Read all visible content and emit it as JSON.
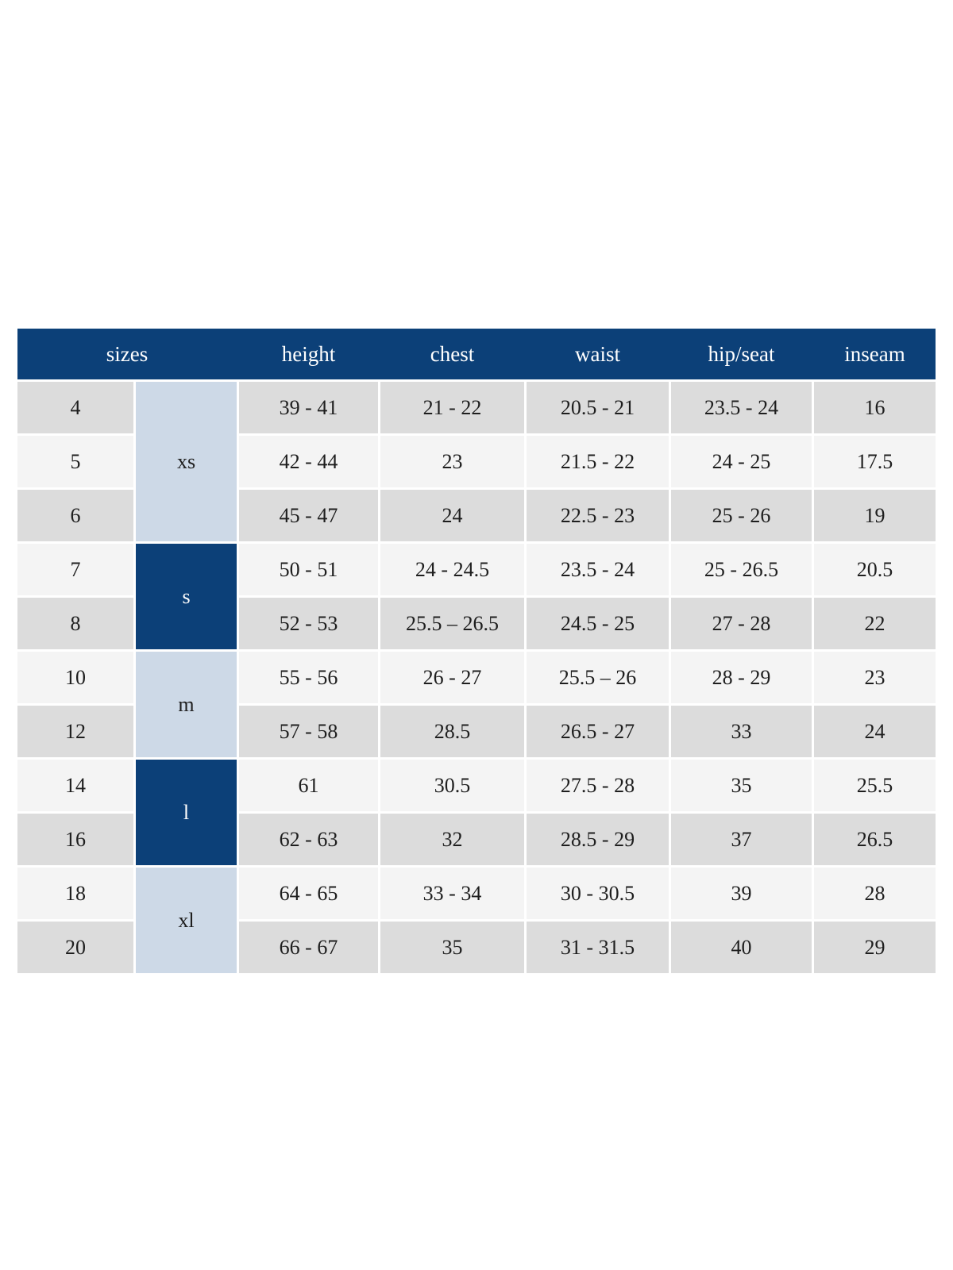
{
  "table": {
    "columns": [
      "sizes",
      "height",
      "chest",
      "waist",
      "hip/seat",
      "inseam"
    ],
    "groups": [
      {
        "label": "xs",
        "rows": 3
      },
      {
        "label": "s",
        "rows": 2
      },
      {
        "label": "m",
        "rows": 2
      },
      {
        "label": "l",
        "rows": 2
      },
      {
        "label": "xl",
        "rows": 2
      }
    ],
    "rows": [
      {
        "size": "4",
        "height": "39 - 41",
        "chest": "21 - 22",
        "waist": "20.5 - 21",
        "hip_seat": "23.5 - 24",
        "inseam": "16"
      },
      {
        "size": "5",
        "height": "42 - 44",
        "chest": "23",
        "waist": "21.5 - 22",
        "hip_seat": "24 - 25",
        "inseam": "17.5"
      },
      {
        "size": "6",
        "height": "45 - 47",
        "chest": "24",
        "waist": "22.5 - 23",
        "hip_seat": "25 - 26",
        "inseam": "19"
      },
      {
        "size": "7",
        "height": "50 - 51",
        "chest": "24 - 24.5",
        "waist": "23.5 - 24",
        "hip_seat": "25 - 26.5",
        "inseam": "20.5"
      },
      {
        "size": "8",
        "height": "52 - 53",
        "chest": "25.5 – 26.5",
        "waist": "24.5 - 25",
        "hip_seat": "27 - 28",
        "inseam": "22"
      },
      {
        "size": "10",
        "height": "55 - 56",
        "chest": "26 - 27",
        "waist": "25.5 – 26",
        "hip_seat": "28 - 29",
        "inseam": "23"
      },
      {
        "size": "12",
        "height": "57 - 58",
        "chest": "28.5",
        "waist": "26.5 - 27",
        "hip_seat": "33",
        "inseam": "24"
      },
      {
        "size": "14",
        "height": "61",
        "chest": "30.5",
        "waist": "27.5 - 28",
        "hip_seat": "35",
        "inseam": "25.5"
      },
      {
        "size": "16",
        "height": "62 - 63",
        "chest": "32",
        "waist": "28.5 - 29",
        "hip_seat": "37",
        "inseam": "26.5"
      },
      {
        "size": "18",
        "height": "64 - 65",
        "chest": "33 - 34",
        "waist": "30 - 30.5",
        "hip_seat": "39",
        "inseam": "28"
      },
      {
        "size": "20",
        "height": "66 - 67",
        "chest": "35",
        "waist": "31 - 31.5",
        "hip_seat": "40",
        "inseam": "29"
      }
    ]
  },
  "colors": {
    "header_navy": "#0c4078",
    "group_light_blue": "#cdd9e7",
    "row_gray": "#dcdcdc",
    "row_light": "#f4f4f4",
    "header_text": "#ffffff",
    "body_text": "#1e1e1e"
  }
}
